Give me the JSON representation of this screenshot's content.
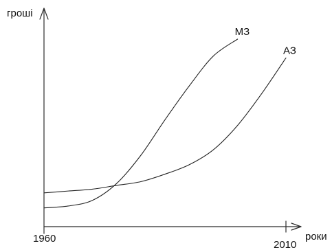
{
  "chart_data": {
    "type": "line",
    "title": "",
    "xlabel": "роки",
    "ylabel": "гроші",
    "x_ticks": [
      "1960",
      "2010"
    ],
    "xlim": [
      1960,
      2010
    ],
    "ylim": [
      0,
      100
    ],
    "grid": false,
    "legend": "none",
    "series": [
      {
        "name": "МЗ",
        "x": [
          1960,
          1965,
          1970,
          1975,
          1980,
          1985,
          1990,
          1995,
          2000
        ],
        "y": [
          10,
          11,
          14,
          23,
          38,
          57,
          75,
          91,
          100
        ]
      },
      {
        "name": "АЗ",
        "x": [
          1960,
          1965,
          1970,
          1975,
          1980,
          1985,
          1990,
          1995,
          2000,
          2005,
          2010
        ],
        "y": [
          18,
          19,
          20,
          22,
          24,
          28,
          33,
          41,
          54,
          71,
          90
        ]
      }
    ]
  }
}
